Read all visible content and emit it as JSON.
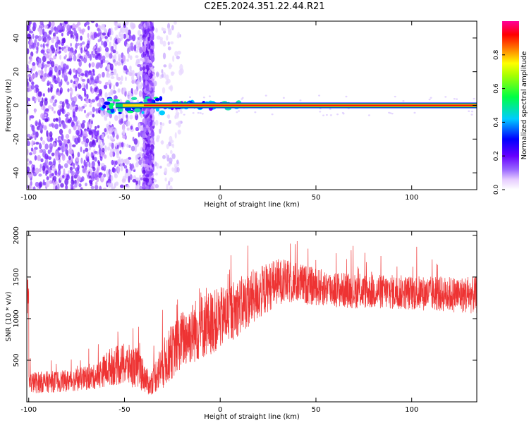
{
  "title": "C2E5.2024.351.22.44.R21",
  "chart_data": [
    {
      "type": "heatmap",
      "name": "spectrogram",
      "xlabel": "Height of straight line (km)",
      "ylabel": "Frequency (Hz)",
      "xlim": [
        -101,
        134
      ],
      "ylim": [
        -50,
        50
      ],
      "xticks": [
        -100,
        -50,
        0,
        50,
        100
      ],
      "yticks": [
        -40,
        -20,
        0,
        20,
        40
      ],
      "colorbar": {
        "label": "Normalized spectral amplitude",
        "ticks": [
          0.0,
          0.2,
          0.4,
          0.6,
          0.8
        ],
        "range": [
          0,
          1
        ]
      },
      "ridge": {
        "frequency": 0,
        "x_start": -62,
        "x_end": 134
      },
      "noise_regions": [
        {
          "x_start": -101,
          "x_end": -62,
          "density": "high"
        },
        {
          "x_start": -62,
          "x_end": -40,
          "density": "medium"
        },
        {
          "x_start": -40,
          "x_end": -35,
          "density": "high"
        },
        {
          "x_start": -35,
          "x_end": -20,
          "density": "low"
        }
      ]
    },
    {
      "type": "line",
      "name": "snr",
      "xlabel": "Height of straight line (km)",
      "ylabel": "SNR (10 * v/v)",
      "xlim": [
        -101,
        134
      ],
      "ylim": [
        0,
        2050
      ],
      "xticks": [
        -100,
        -50,
        0,
        50,
        100
      ],
      "yticks": [
        500,
        1000,
        1500,
        2000
      ],
      "color": "#ee3333",
      "envelope": [
        {
          "x": -100,
          "mean": 230,
          "spread": 260
        },
        {
          "x": -80,
          "mean": 250,
          "spread": 260
        },
        {
          "x": -65,
          "mean": 300,
          "spread": 300
        },
        {
          "x": -58,
          "mean": 420,
          "spread": 450
        },
        {
          "x": -50,
          "mean": 450,
          "spread": 500
        },
        {
          "x": -42,
          "mean": 400,
          "spread": 500
        },
        {
          "x": -37,
          "mean": 200,
          "spread": 250
        },
        {
          "x": -30,
          "mean": 450,
          "spread": 600
        },
        {
          "x": -20,
          "mean": 750,
          "spread": 700
        },
        {
          "x": -10,
          "mean": 900,
          "spread": 800
        },
        {
          "x": 0,
          "mean": 1000,
          "spread": 750
        },
        {
          "x": 10,
          "mean": 1150,
          "spread": 700
        },
        {
          "x": 20,
          "mean": 1300,
          "spread": 650
        },
        {
          "x": 30,
          "mean": 1450,
          "spread": 550
        },
        {
          "x": 40,
          "mean": 1430,
          "spread": 500
        },
        {
          "x": 50,
          "mean": 1380,
          "spread": 450
        },
        {
          "x": 70,
          "mean": 1330,
          "spread": 420
        },
        {
          "x": 90,
          "mean": 1320,
          "spread": 420
        },
        {
          "x": 110,
          "mean": 1300,
          "spread": 420
        },
        {
          "x": 134,
          "mean": 1280,
          "spread": 450
        }
      ]
    }
  ]
}
